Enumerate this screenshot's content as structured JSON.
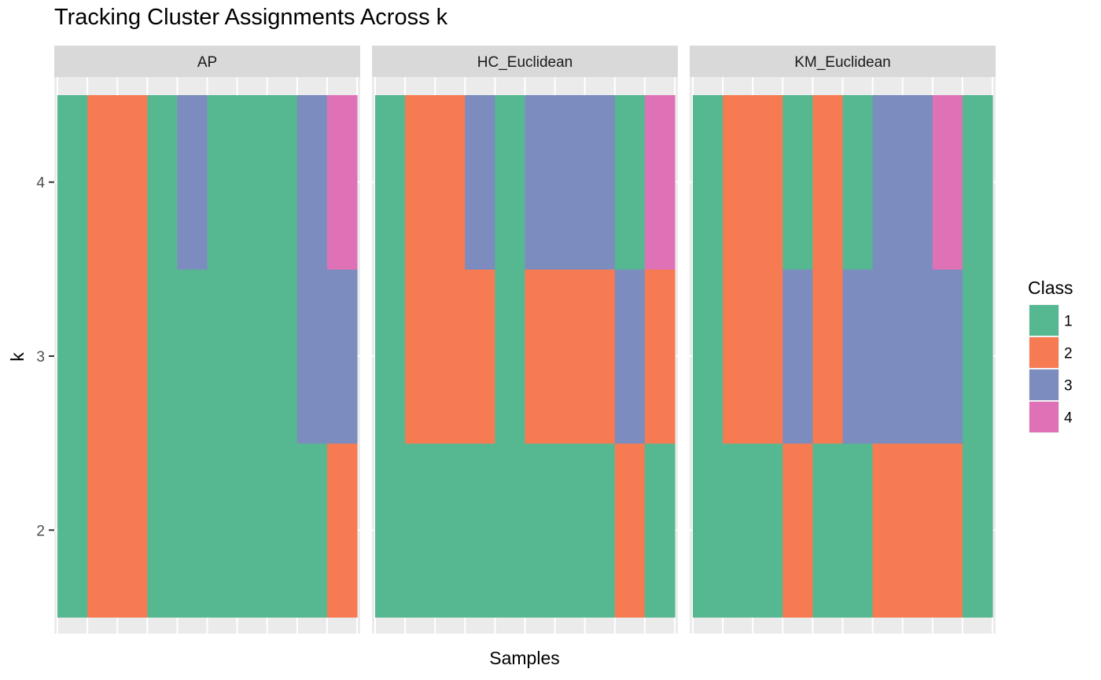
{
  "chart_data": {
    "type": "heatmap",
    "title": "Tracking Cluster Assignments Across k",
    "xlabel": "Samples",
    "ylabel": "k",
    "y_levels": [
      2,
      3,
      4
    ],
    "y_ticks": [
      "2",
      "3",
      "4"
    ],
    "n_samples": 10,
    "legend": {
      "title": "Class",
      "placement": "right",
      "entries": [
        {
          "label": "1",
          "color": "#56B891"
        },
        {
          "label": "2",
          "color": "#F77B52"
        },
        {
          "label": "3",
          "color": "#7C8CBE"
        },
        {
          "label": "4",
          "color": "#DF72B6"
        }
      ]
    },
    "panels": [
      {
        "name": "AP",
        "rows": {
          "4": [
            1,
            2,
            2,
            1,
            3,
            1,
            1,
            1,
            3,
            4
          ],
          "3": [
            1,
            2,
            2,
            1,
            1,
            1,
            1,
            1,
            3,
            3
          ],
          "2": [
            1,
            2,
            2,
            1,
            1,
            1,
            1,
            1,
            1,
            2
          ]
        }
      },
      {
        "name": "HC_Euclidean",
        "rows": {
          "4": [
            1,
            2,
            2,
            3,
            1,
            3,
            3,
            3,
            1,
            4
          ],
          "3": [
            1,
            2,
            2,
            2,
            1,
            2,
            2,
            2,
            3,
            2
          ],
          "2": [
            1,
            1,
            1,
            1,
            1,
            1,
            1,
            1,
            2,
            1
          ]
        }
      },
      {
        "name": "KM_Euclidean",
        "rows": {
          "4": [
            1,
            2,
            2,
            1,
            2,
            1,
            3,
            3,
            4,
            1
          ],
          "3": [
            1,
            2,
            2,
            3,
            2,
            3,
            3,
            3,
            3,
            1
          ],
          "2": [
            1,
            1,
            1,
            2,
            1,
            1,
            2,
            2,
            2,
            1
          ]
        }
      }
    ],
    "grid": true
  }
}
